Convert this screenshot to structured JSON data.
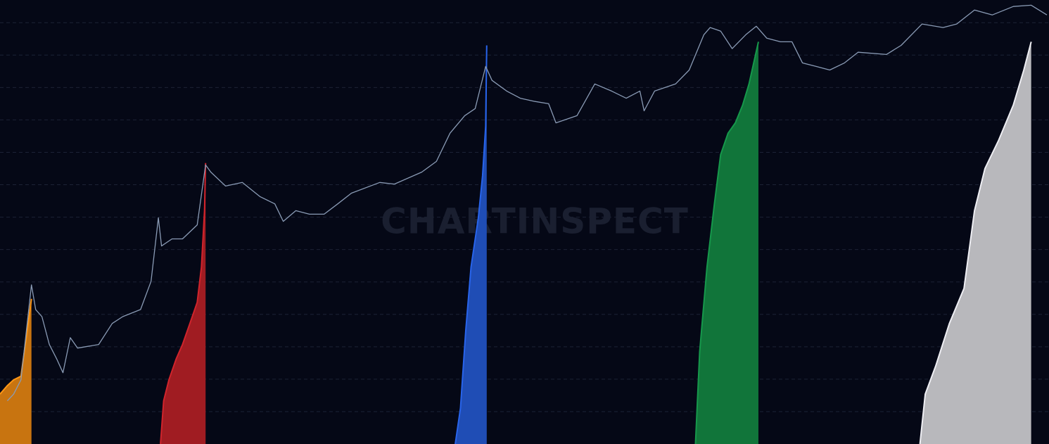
{
  "chart_data": {
    "type": "area",
    "watermark": "CHARTINSPECT",
    "xlim": [
      0,
      100
    ],
    "ylim": [
      0,
      13.7
    ],
    "yticks": [
      1,
      2,
      3,
      4,
      5,
      6,
      7,
      8,
      9,
      10,
      11,
      12,
      13
    ],
    "grid": true,
    "series": [
      {
        "type": "line",
        "color": "#8a9bb5",
        "x": [
          0.7,
          1.3,
          2.0,
          3.0,
          3.4,
          4.0,
          4.7,
          5.4,
          6.0,
          6.7,
          7.4,
          9.4,
          10.7,
          11.7,
          13.4,
          14.4,
          15.1,
          15.4,
          16.4,
          17.4,
          18.8,
          19.6,
          20.1,
          21.5,
          23.1,
          24.8,
          26.2,
          27.0,
          28.2,
          29.5,
          30.9,
          32.2,
          33.5,
          36.2,
          37.6,
          40.2,
          41.6,
          42.9,
          44.3,
          45.3,
          46.3,
          46.9,
          48.3,
          49.6,
          51.0,
          52.3,
          53.0,
          55.0,
          56.7,
          58.3,
          59.7,
          61.0,
          61.4,
          62.4,
          64.4,
          65.7,
          67.1,
          67.7,
          68.7,
          69.8,
          71.1,
          72.1,
          73.1,
          74.4,
          75.5,
          76.5,
          77.8,
          79.1,
          80.5,
          81.8,
          84.5,
          85.9,
          87.9,
          89.9,
          91.2,
          92.9,
          94.6,
          96.6,
          98.3,
          99.8
        ],
        "values": [
          1.33,
          1.54,
          1.98,
          4.91,
          4.15,
          3.93,
          3.07,
          2.63,
          2.2,
          3.28,
          2.96,
          3.07,
          3.72,
          3.93,
          4.15,
          5.02,
          6.98,
          6.11,
          6.33,
          6.33,
          6.76,
          8.61,
          8.39,
          7.96,
          8.07,
          7.63,
          7.41,
          6.87,
          7.2,
          7.09,
          7.09,
          7.41,
          7.74,
          8.07,
          8.02,
          8.39,
          8.72,
          9.59,
          10.13,
          10.35,
          11.65,
          11.22,
          10.89,
          10.67,
          10.57,
          10.5,
          9.91,
          10.13,
          11.11,
          10.89,
          10.67,
          10.89,
          10.28,
          10.89,
          11.11,
          11.54,
          12.63,
          12.85,
          12.74,
          12.2,
          12.63,
          12.89,
          12.52,
          12.41,
          12.41,
          11.76,
          11.65,
          11.54,
          11.76,
          12.09,
          12.02,
          12.3,
          12.96,
          12.85,
          12.96,
          13.39,
          13.24,
          13.5,
          13.54,
          13.24
        ]
      },
      {
        "type": "area",
        "color": "#c87410",
        "x": [
          0,
          0.7,
          1.3,
          2.0,
          2.5,
          3.0
        ],
        "values": [
          1.54,
          1.8,
          1.98,
          2.09,
          3.28,
          4.48
        ]
      },
      {
        "type": "area",
        "color": "#a01c22",
        "x": [
          15.3,
          15.6,
          16.1,
          16.8,
          17.4,
          18.1,
          18.8,
          19.2,
          19.5,
          19.6
        ],
        "values": [
          0,
          1.33,
          1.98,
          2.63,
          3.07,
          3.72,
          4.37,
          5.46,
          7.2,
          8.67
        ]
      },
      {
        "type": "area",
        "color": "#1f4db5",
        "x": [
          43.4,
          43.9,
          44.4,
          44.9,
          45.6,
          46.0,
          46.3,
          46.4
        ],
        "values": [
          0,
          1.11,
          3.5,
          5.46,
          6.98,
          8.28,
          9.8,
          12.3
        ]
      },
      {
        "type": "area",
        "color": "#11753a",
        "x": [
          66.3,
          66.7,
          67.4,
          68.1,
          68.7,
          69.4,
          70.1,
          70.8,
          71.4,
          72.3
        ],
        "values": [
          0,
          2.85,
          5.46,
          7.41,
          8.93,
          9.59,
          9.91,
          10.46,
          11.11,
          12.41
        ]
      },
      {
        "type": "area",
        "color": "#b8b8bc",
        "x": [
          87.7,
          88.2,
          89.2,
          90.5,
          91.9,
          92.9,
          93.9,
          95.2,
          96.6,
          97.6,
          98.3
        ],
        "values": [
          0,
          1.54,
          2.41,
          3.72,
          4.8,
          7.2,
          8.5,
          9.37,
          10.46,
          11.54,
          12.41
        ]
      }
    ]
  }
}
